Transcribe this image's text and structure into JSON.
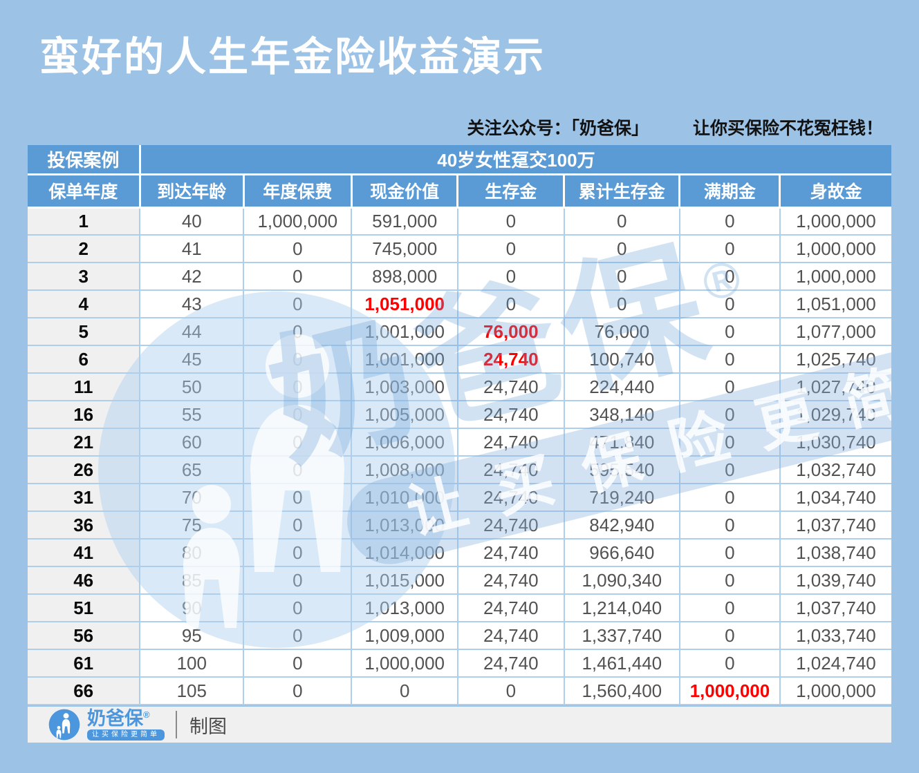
{
  "page": {
    "title": "蛮好的人生年金险收益演示",
    "promo_left": "关注公众号：「奶爸保」",
    "promo_right": "让你买保险不花冤枉钱！"
  },
  "table": {
    "case_label": "投保案例",
    "case_value": "40岁女性趸交100万",
    "columns": [
      "保单年度",
      "到达年龄",
      "年度保费",
      "现金价值",
      "生存金",
      "累计生存金",
      "满期金",
      "身故金"
    ],
    "rows": [
      {
        "cells": [
          "1",
          "40",
          "1,000,000",
          "591,000",
          "0",
          "0",
          "0",
          "1,000,000"
        ],
        "red": []
      },
      {
        "cells": [
          "2",
          "41",
          "0",
          "745,000",
          "0",
          "0",
          "0",
          "1,000,000"
        ],
        "red": []
      },
      {
        "cells": [
          "3",
          "42",
          "0",
          "898,000",
          "0",
          "0",
          "0",
          "1,000,000"
        ],
        "red": []
      },
      {
        "cells": [
          "4",
          "43",
          "0",
          "1,051,000",
          "0",
          "0",
          "0",
          "1,051,000"
        ],
        "red": [
          3
        ]
      },
      {
        "cells": [
          "5",
          "44",
          "0",
          "1,001,000",
          "76,000",
          "76,000",
          "0",
          "1,077,000"
        ],
        "red": [
          4
        ]
      },
      {
        "cells": [
          "6",
          "45",
          "0",
          "1,001,000",
          "24,740",
          "100,740",
          "0",
          "1,025,740"
        ],
        "red": [
          4
        ]
      },
      {
        "cells": [
          "11",
          "50",
          "0",
          "1,003,000",
          "24,740",
          "224,440",
          "0",
          "1,027,740"
        ],
        "red": []
      },
      {
        "cells": [
          "16",
          "55",
          "0",
          "1,005,000",
          "24,740",
          "348,140",
          "0",
          "1,029,740"
        ],
        "red": []
      },
      {
        "cells": [
          "21",
          "60",
          "0",
          "1,006,000",
          "24,740",
          "471,840",
          "0",
          "1,030,740"
        ],
        "red": []
      },
      {
        "cells": [
          "26",
          "65",
          "0",
          "1,008,000",
          "24,740",
          "595,540",
          "0",
          "1,032,740"
        ],
        "red": []
      },
      {
        "cells": [
          "31",
          "70",
          "0",
          "1,010,000",
          "24,740",
          "719,240",
          "0",
          "1,034,740"
        ],
        "red": []
      },
      {
        "cells": [
          "36",
          "75",
          "0",
          "1,013,000",
          "24,740",
          "842,940",
          "0",
          "1,037,740"
        ],
        "red": []
      },
      {
        "cells": [
          "41",
          "80",
          "0",
          "1,014,000",
          "24,740",
          "966,640",
          "0",
          "1,038,740"
        ],
        "red": []
      },
      {
        "cells": [
          "46",
          "85",
          "0",
          "1,015,000",
          "24,740",
          "1,090,340",
          "0",
          "1,039,740"
        ],
        "red": []
      },
      {
        "cells": [
          "51",
          "90",
          "0",
          "1,013,000",
          "24,740",
          "1,214,040",
          "0",
          "1,037,740"
        ],
        "red": []
      },
      {
        "cells": [
          "56",
          "95",
          "0",
          "1,009,000",
          "24,740",
          "1,337,740",
          "0",
          "1,033,740"
        ],
        "red": []
      },
      {
        "cells": [
          "61",
          "100",
          "0",
          "1,000,000",
          "24,740",
          "1,461,440",
          "0",
          "1,024,740"
        ],
        "red": []
      },
      {
        "cells": [
          "66",
          "105",
          "0",
          "0",
          "0",
          "1,560,400",
          "1,000,000",
          "1,000,000"
        ],
        "red": [
          6
        ]
      }
    ]
  },
  "chart_data": {
    "type": "table",
    "title": "蛮好的人生年金险收益演示",
    "case": "40岁女性趸交100万",
    "columns": [
      "保单年度",
      "到达年龄",
      "年度保费",
      "现金价值",
      "生存金",
      "累计生存金",
      "满期金",
      "身故金"
    ],
    "rows": [
      [
        1,
        40,
        1000000,
        591000,
        0,
        0,
        0,
        1000000
      ],
      [
        2,
        41,
        0,
        745000,
        0,
        0,
        0,
        1000000
      ],
      [
        3,
        42,
        0,
        898000,
        0,
        0,
        0,
        1000000
      ],
      [
        4,
        43,
        0,
        1051000,
        0,
        0,
        0,
        1051000
      ],
      [
        5,
        44,
        0,
        1001000,
        76000,
        76000,
        0,
        1077000
      ],
      [
        6,
        45,
        0,
        1001000,
        24740,
        100740,
        0,
        1025740
      ],
      [
        11,
        50,
        0,
        1003000,
        24740,
        224440,
        0,
        1027740
      ],
      [
        16,
        55,
        0,
        1005000,
        24740,
        348140,
        0,
        1029740
      ],
      [
        21,
        60,
        0,
        1006000,
        24740,
        471840,
        0,
        1030740
      ],
      [
        26,
        65,
        0,
        1008000,
        24740,
        595540,
        0,
        1032740
      ],
      [
        31,
        70,
        0,
        1010000,
        24740,
        719240,
        0,
        1034740
      ],
      [
        36,
        75,
        0,
        1013000,
        24740,
        842940,
        0,
        1037740
      ],
      [
        41,
        80,
        0,
        1014000,
        24740,
        966640,
        0,
        1038740
      ],
      [
        46,
        85,
        0,
        1015000,
        24740,
        1090340,
        0,
        1039740
      ],
      [
        51,
        90,
        0,
        1013000,
        24740,
        1214040,
        0,
        1037740
      ],
      [
        56,
        95,
        0,
        1009000,
        24740,
        1337740,
        0,
        1033740
      ],
      [
        61,
        100,
        0,
        1000000,
        24740,
        1461440,
        0,
        1024740
      ],
      [
        66,
        105,
        0,
        0,
        0,
        1560400,
        1000000,
        1000000
      ]
    ],
    "highlighted_red_cells": [
      {
        "row_year": 4,
        "column": "现金价值",
        "value": 1051000
      },
      {
        "row_year": 5,
        "column": "生存金",
        "value": 76000
      },
      {
        "row_year": 6,
        "column": "生存金",
        "value": 24740
      },
      {
        "row_year": 66,
        "column": "满期金",
        "value": 1000000
      }
    ]
  },
  "watermark": {
    "brand": "奶爸保",
    "registered": "®",
    "slogan": "让买保险更简单"
  },
  "footer": {
    "brand": "奶爸保",
    "registered": "®",
    "slogan": "让买保险更简单",
    "credit": "制图"
  },
  "colors": {
    "page_background": "#9CC2E6",
    "header_blue": "#5B9BD5",
    "body_border_blue": "#AECFEC",
    "year_column_gray": "#F0F0F0",
    "data_text": "#525252",
    "highlight_red": "#FF0000",
    "footer_strip": "#F0F0F0",
    "brand_blue": "#4B96DC",
    "title_white": "#FFFFFF"
  }
}
